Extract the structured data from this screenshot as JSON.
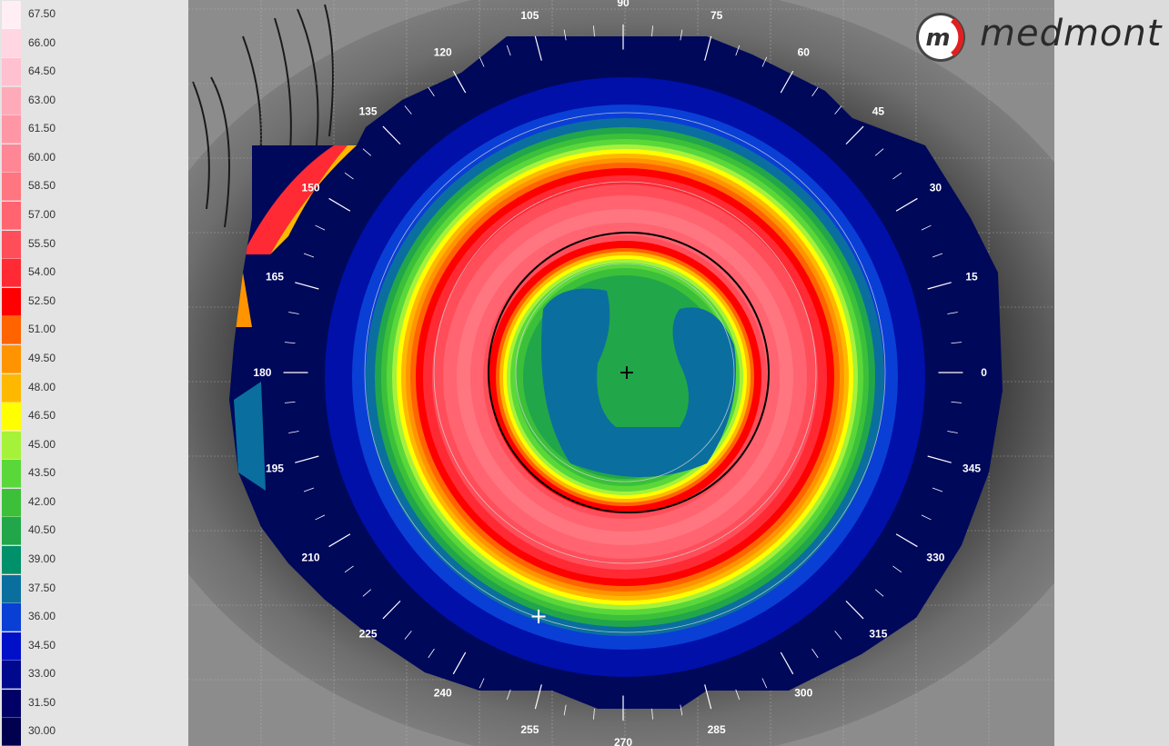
{
  "color_scale": {
    "labels": [
      "67.50",
      "66.00",
      "64.50",
      "63.00",
      "61.50",
      "60.00",
      "58.50",
      "57.00",
      "55.50",
      "54.00",
      "52.50",
      "51.00",
      "49.50",
      "48.00",
      "46.50",
      "45.00",
      "43.50",
      "42.00",
      "40.50",
      "39.00",
      "37.50",
      "36.00",
      "34.50",
      "33.00",
      "31.50",
      "30.00"
    ],
    "colors": [
      "#ffeef4",
      "#ffd6e2",
      "#ffc0cf",
      "#ffaab8",
      "#ff96a6",
      "#ff8694",
      "#ff7580",
      "#ff6470",
      "#ff4e5a",
      "#ff2a34",
      "#ff0000",
      "#ff6400",
      "#ff9400",
      "#ffb800",
      "#ffff00",
      "#a6f23a",
      "#5ad83a",
      "#3cc03a",
      "#22a64a",
      "#00906a",
      "#0a6f9e",
      "#0a3fd6",
      "#0010c8",
      "#00088e",
      "#000066",
      "#00004e"
    ]
  },
  "map": {
    "angle_labels": [
      "0",
      "15",
      "30",
      "45",
      "60",
      "75",
      "90",
      "105",
      "120",
      "135",
      "150",
      "165",
      "180",
      "195",
      "210",
      "225",
      "240",
      "255",
      "270",
      "285",
      "300",
      "315",
      "330",
      "345"
    ],
    "center_marker": "+",
    "secondary_marker": "+"
  },
  "brand": {
    "name": "medmont",
    "badge": "m",
    "badge_color": "#e02020"
  }
}
